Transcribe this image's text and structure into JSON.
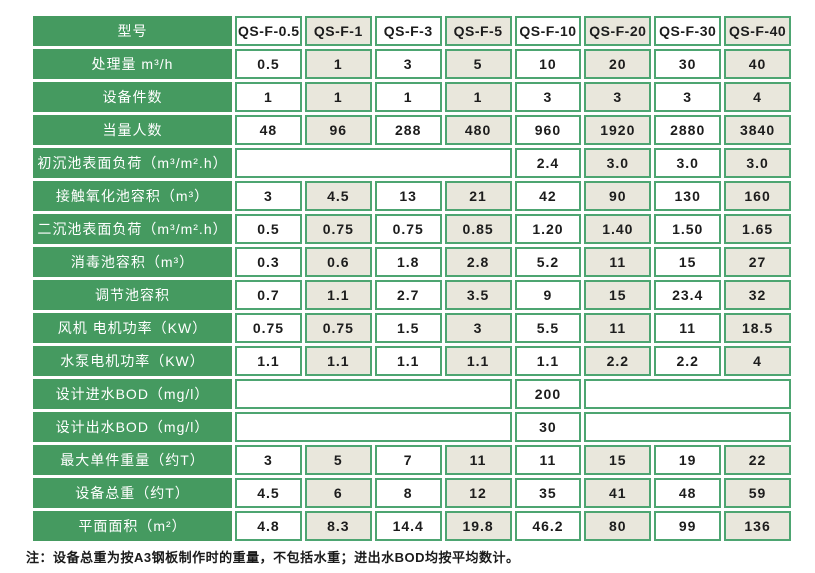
{
  "colors": {
    "label_green": "#459a60",
    "border_green": "#4da571",
    "cell_white": "#ffffff",
    "cell_beige": "#e9e7dc",
    "label_text": "#ffffff",
    "data_text": "#1c1c1c"
  },
  "table": {
    "header": {
      "label": "型号",
      "models": [
        "QS-F-0.5",
        "QS-F-1",
        "QS-F-3",
        "QS-F-5",
        "QS-F-10",
        "QS-F-20",
        "QS-F-30",
        "QS-F-40"
      ]
    },
    "rows": [
      {
        "label": "处理量 m³/h",
        "cells": [
          "0.5",
          "1",
          "3",
          "5",
          "10",
          "20",
          "30",
          "40"
        ]
      },
      {
        "label": "设备件数",
        "cells": [
          "1",
          "1",
          "1",
          "1",
          "3",
          "3",
          "3",
          "4"
        ]
      },
      {
        "label": "当量人数",
        "cells": [
          "48",
          "96",
          "288",
          "480",
          "960",
          "1920",
          "2880",
          "3840"
        ]
      },
      {
        "label": "初沉池表面负荷（m³/m².h）",
        "cells": [
          {
            "t": "",
            "span": 4
          },
          "2.4",
          "3.0",
          "3.0",
          "3.0"
        ]
      },
      {
        "label": "接触氧化池容积（m³）",
        "cells": [
          "3",
          "4.5",
          "13",
          "21",
          "42",
          "90",
          "130",
          "160"
        ]
      },
      {
        "label": "二沉池表面负荷（m³/m².h）",
        "cells": [
          "0.5",
          "0.75",
          "0.75",
          "0.85",
          "1.20",
          "1.40",
          "1.50",
          "1.65"
        ]
      },
      {
        "label": "消毒池容积（m³）",
        "cells": [
          "0.3",
          "0.6",
          "1.8",
          "2.8",
          "5.2",
          "11",
          "15",
          "27"
        ]
      },
      {
        "label": "调节池容积",
        "cells": [
          "0.7",
          "1.1",
          "2.7",
          "3.5",
          "9",
          "15",
          "23.4",
          "32"
        ]
      },
      {
        "label": "风机 电机功率（KW）",
        "cells": [
          "0.75",
          "0.75",
          "1.5",
          "3",
          "5.5",
          "11",
          "11",
          "18.5"
        ]
      },
      {
        "label": "水泵电机功率（KW）",
        "cells": [
          "1.1",
          "1.1",
          "1.1",
          "1.1",
          "1.1",
          "2.2",
          "2.2",
          "4"
        ]
      },
      {
        "label": "设计进水BOD（mg/l）",
        "cells": [
          {
            "t": "",
            "span": 4
          },
          "200",
          {
            "t": "",
            "span": 3
          }
        ]
      },
      {
        "label": "设计出水BOD（mg/l）",
        "cells": [
          {
            "t": "",
            "span": 4
          },
          "30",
          {
            "t": "",
            "span": 3
          }
        ]
      },
      {
        "label": "最大单件重量（约T）",
        "cells": [
          "3",
          "5",
          "7",
          "11",
          "11",
          "15",
          "19",
          "22"
        ]
      },
      {
        "label": "设备总重（约T）",
        "cells": [
          "4.5",
          "6",
          "8",
          "12",
          "35",
          "41",
          "48",
          "59"
        ]
      },
      {
        "label": "平面面积（m²）",
        "cells": [
          "4.8",
          "8.3",
          "14.4",
          "19.8",
          "46.2",
          "80",
          "99",
          "136"
        ]
      }
    ]
  },
  "footnote": "注：设备总重为按A3钢板制作时的重量，不包括水重；进出水BOD均按平均数计。"
}
